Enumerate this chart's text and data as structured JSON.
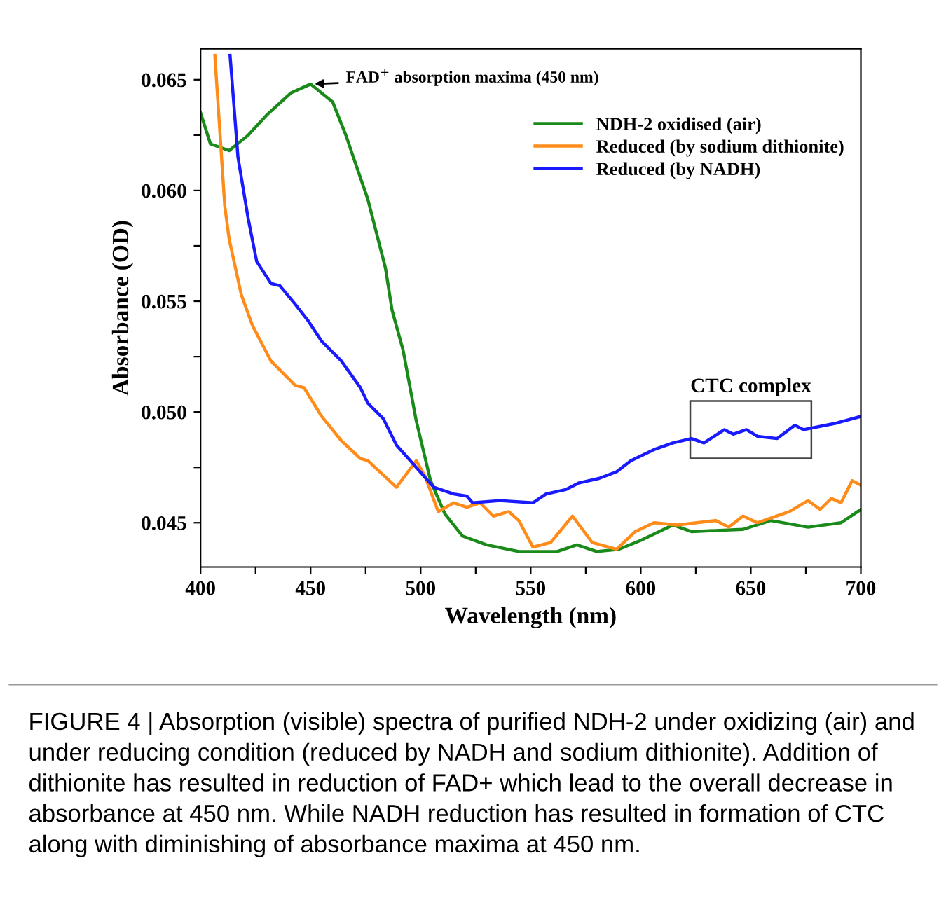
{
  "chart_data": {
    "type": "line",
    "xlabel": "Wavelength (nm)",
    "ylabel": "Absorbance (OD)",
    "xlim": [
      400,
      700
    ],
    "ylim": [
      0.043,
      0.0664
    ],
    "xticks": [
      400,
      {
        "value": 425,
        "label": null
      },
      450,
      {
        "value": 475,
        "label": null
      },
      500,
      {
        "value": 525,
        "label": null
      },
      550,
      {
        "value": 575,
        "label": null
      },
      600,
      {
        "value": 625,
        "label": null
      },
      650,
      {
        "value": 675,
        "label": null
      },
      700
    ],
    "yticks": [
      0.045,
      {
        "value": 0.0475,
        "label": null
      },
      {
        "value": 0.05,
        "label": "0.050"
      },
      {
        "value": 0.0525,
        "label": null
      },
      0.055,
      {
        "value": 0.0575,
        "label": null
      },
      {
        "value": 0.06,
        "label": "0.060"
      },
      {
        "value": 0.0625,
        "label": null
      },
      0.065
    ],
    "grid": false,
    "legend": "top right",
    "marker": "none",
    "line_style": "solid",
    "series": [
      {
        "name": "NDH-2 oxidised (air)",
        "color": "#1a8a1a",
        "x": [
          400,
          404.5,
          413,
          421.7,
          430,
          441,
          450,
          460,
          466,
          476,
          484,
          487,
          492,
          498,
          504.5,
          511,
          519,
          530,
          544.6,
          562,
          571,
          580,
          590,
          600,
          614.6,
          623,
          646.5,
          659,
          676,
          691,
          700
        ],
        "values": [
          0.0635,
          0.0621,
          0.0618,
          0.0625,
          0.0634,
          0.0644,
          0.0648,
          0.064,
          0.0625,
          0.0596,
          0.0565,
          0.0546,
          0.0528,
          0.0496,
          0.0469,
          0.0454,
          0.0444,
          0.044,
          0.0437,
          0.0437,
          0.044,
          0.0437,
          0.0438,
          0.0442,
          0.0449,
          0.0446,
          0.0447,
          0.0451,
          0.0448,
          0.045,
          0.0456
        ]
      },
      {
        "name": "Reduced (by sodium dithionite)",
        "color": "#ff8c1a",
        "x": [
          406.5,
          411,
          413,
          418.5,
          423.6,
          432,
          443,
          447,
          455,
          464,
          472.6,
          476,
          489,
          498,
          502,
          508,
          515,
          521,
          527,
          533,
          540,
          544.6,
          551,
          559,
          569,
          578,
          589,
          597.5,
          606,
          616.6,
          634,
          640,
          646.5,
          653,
          667.5,
          676,
          681.5,
          686.6,
          691,
          696,
          700
        ],
        "values": [
          0.0661,
          0.0593,
          0.0578,
          0.0553,
          0.0539,
          0.0523,
          0.0512,
          0.0511,
          0.0498,
          0.0487,
          0.0479,
          0.0478,
          0.0466,
          0.0478,
          0.0471,
          0.0455,
          0.0459,
          0.0457,
          0.0459,
          0.0453,
          0.0455,
          0.0451,
          0.0439,
          0.0441,
          0.0453,
          0.0441,
          0.0438,
          0.0446,
          0.045,
          0.0449,
          0.0451,
          0.0448,
          0.0453,
          0.045,
          0.0455,
          0.046,
          0.0456,
          0.0461,
          0.0459,
          0.0469,
          0.0467
        ]
      },
      {
        "name": "Reduced (by NADH)",
        "color": "#1a1aff",
        "x": [
          413.4,
          417,
          421.7,
          425.5,
          432,
          436,
          442.7,
          449,
          455,
          464,
          472.6,
          476,
          483,
          489,
          498,
          506,
          515,
          521,
          523.6,
          536,
          551,
          557,
          566,
          572,
          581,
          589,
          595.5,
          606,
          614.6,
          623,
          628.7,
          638,
          642,
          648,
          653,
          662,
          670,
          674,
          689,
          700
        ],
        "values": [
          0.0661,
          0.0615,
          0.0587,
          0.0568,
          0.0558,
          0.0557,
          0.0549,
          0.0541,
          0.0532,
          0.0523,
          0.0511,
          0.0504,
          0.0497,
          0.0485,
          0.0475,
          0.0466,
          0.0463,
          0.0462,
          0.0459,
          0.046,
          0.0459,
          0.0463,
          0.0465,
          0.0468,
          0.047,
          0.0473,
          0.0478,
          0.0483,
          0.0486,
          0.0488,
          0.0486,
          0.0492,
          0.049,
          0.0492,
          0.0489,
          0.0488,
          0.0494,
          0.0492,
          0.0495,
          0.0498
        ]
      }
    ],
    "annotations": [
      {
        "text": "FAD$^{+}$ absorption maxima (450 nm)",
        "x": 450,
        "y": 0.0648
      },
      {
        "text": "CTC complex",
        "x": 650,
        "y": 0.0492
      },
      "FIGURE 4 | Absorption (visible) spectra of purified NDH-2 under oxidizing (air) and under reducing condition (reduced by NADH and sodium dithionite). Addition of dithionite has resulted in reduction of FAD+ which lead to the overall decrease in absorbance at 450 nm. While NADH reduction has resulted in formation of CTC along with diminishing of absorbance maxima at 450 nm."
    ]
  }
}
